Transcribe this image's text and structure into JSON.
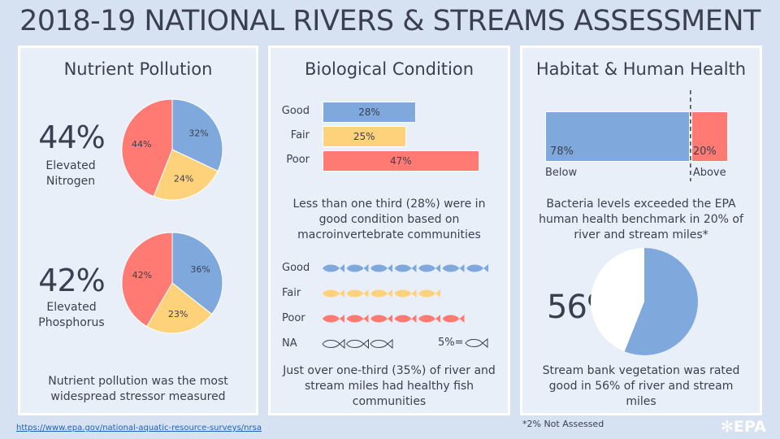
{
  "title": "2018-19 NATIONAL RIVERS & STREAMS ASSESSMENT",
  "colors": {
    "good": "#7fa9dc",
    "fair": "#fed27b",
    "poor": "#fe7a73",
    "na": "#ffffff"
  },
  "nutrient": {
    "heading": "Nutrient Pollution",
    "nitrogen": {
      "big": "44%",
      "label_line1": "Elevated",
      "label_line2": "Nitrogen",
      "slices": [
        {
          "label": "32%",
          "value": 32,
          "color": "#7fa9dc"
        },
        {
          "label": "24%",
          "value": 24,
          "color": "#fed27b"
        },
        {
          "label": "44%",
          "value": 44,
          "color": "#fe7a73"
        }
      ]
    },
    "phosphorus": {
      "big": "42%",
      "label_line1": "Elevated",
      "label_line2": "Phosphorus",
      "slices": [
        {
          "label": "36%",
          "value": 36,
          "color": "#7fa9dc"
        },
        {
          "label": "23%",
          "value": 23,
          "color": "#fed27b"
        },
        {
          "label": "42%",
          "value": 42,
          "color": "#fe7a73"
        }
      ]
    },
    "caption_line1": "Nutrient pollution was the most",
    "caption_line2": "widespread stressor measured"
  },
  "biological": {
    "heading": "Biological Condition",
    "bars": [
      {
        "label": "Good",
        "value": 28,
        "text": "28%"
      },
      {
        "label": "Fair",
        "value": 25,
        "text": "25%"
      },
      {
        "label": "Poor",
        "value": 47,
        "text": "47%"
      }
    ],
    "caption1_line1": "Less than one third (28%) were in",
    "caption1_line2": "good condition based on",
    "caption1_line3": "macroinvertebrate communities",
    "fish_rows": [
      {
        "label": "Good",
        "count": 7
      },
      {
        "label": "Fair",
        "count": 5
      },
      {
        "label": "Poor",
        "count": 6
      },
      {
        "label": "NA",
        "count": 3
      }
    ],
    "fish_key": "5%=",
    "caption2_line1": "Just over one-third (35%) of river and",
    "caption2_line2": "stream miles had healthy fish",
    "caption2_line3": "communities"
  },
  "habitat": {
    "heading": "Habitat & Human Health",
    "bacteria": {
      "below_value": "78%",
      "above_value": "20%",
      "below_label": "Below",
      "above_label": "Above",
      "below_fraction": 78,
      "above_fraction": 20
    },
    "caption1_line1": "Bacteria levels exceeded the EPA",
    "caption1_line2": "human health benchmark in 20% of",
    "caption1_line3": "river and stream miles*",
    "vegetation": {
      "big": "56%",
      "value": 56
    },
    "caption2_line1": "Stream bank vegetation was rated",
    "caption2_line2": "good in 56% of river and stream",
    "caption2_line3": "miles"
  },
  "footnote": "*2% Not Assessed",
  "url": "https://www.epa.gov/national-aquatic-resource-surveys/nrsa",
  "logo": "EPA"
}
